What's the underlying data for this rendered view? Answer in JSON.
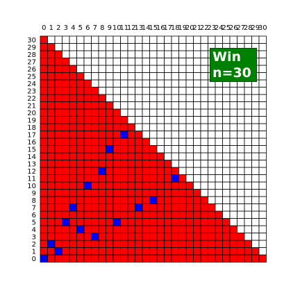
{
  "game": {
    "n": 30,
    "colors": {
      "filled": "#ff0000",
      "empty": "#ffffff",
      "queen": "#0000ff",
      "grid": "#000000"
    },
    "queens": [
      [
        0,
        0
      ],
      [
        1,
        2
      ],
      [
        2,
        1
      ],
      [
        3,
        5
      ],
      [
        4,
        7
      ],
      [
        5,
        4
      ],
      [
        6,
        10
      ],
      [
        7,
        3
      ],
      [
        8,
        12
      ],
      [
        9,
        15
      ],
      [
        10,
        5
      ],
      [
        11,
        17
      ],
      [
        13,
        7
      ],
      [
        15,
        8
      ],
      [
        18,
        11
      ]
    ]
  },
  "x_labels": [
    "0",
    "1",
    "2",
    "3",
    "4",
    "5",
    "6",
    "7",
    "8",
    "9",
    "10",
    "11",
    "12",
    "13",
    "14",
    "15",
    "16",
    "17",
    "18",
    "19",
    "20",
    "21",
    "22",
    "23",
    "24",
    "25",
    "26",
    "27",
    "28",
    "29",
    "30"
  ],
  "y_labels": [
    "30",
    "29",
    "28",
    "27",
    "26",
    "25",
    "24",
    "23",
    "22",
    "21",
    "20",
    "19",
    "18",
    "17",
    "16",
    "15",
    "14",
    "13",
    "12",
    "11",
    "10",
    "9",
    "8",
    "7",
    "6",
    "5",
    "4",
    "3",
    "2",
    "1",
    "0"
  ],
  "status": {
    "line1": "Win",
    "line2": "n=30"
  }
}
